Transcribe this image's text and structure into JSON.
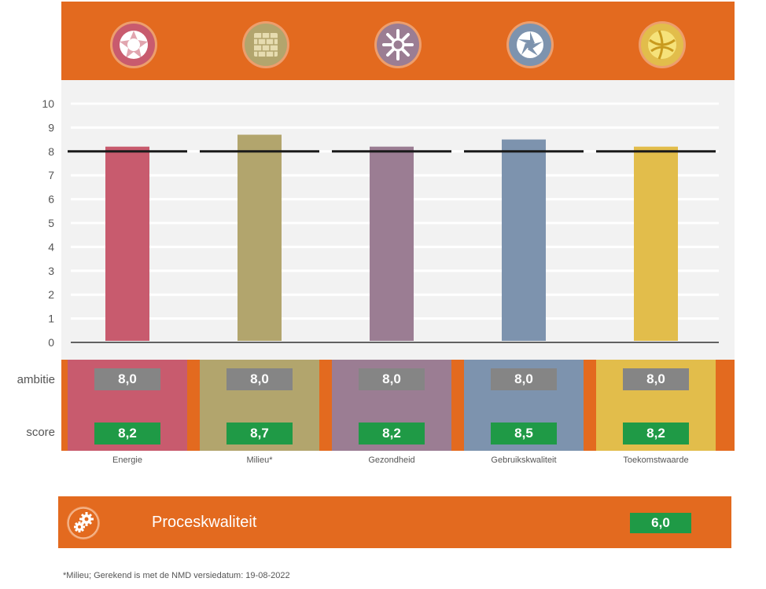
{
  "chart_data": {
    "type": "bar",
    "categories": [
      "Energie",
      "Milieu*",
      "Gezondheid",
      "Gebruikskwaliteit",
      "Toekomstwaarde"
    ],
    "values": [
      8.2,
      8.7,
      8.2,
      8.5,
      8.2
    ],
    "ambition": [
      8.0,
      8.0,
      8.0,
      8.0,
      8.0
    ],
    "ylim": [
      0,
      10
    ],
    "yticks": [
      "0",
      "1",
      "2",
      "3",
      "4",
      "5",
      "6",
      "7",
      "8",
      "9",
      "10"
    ],
    "grid": true,
    "reference_line": 8,
    "colors": [
      "#c85b6e",
      "#b2a56d",
      "#9b7d93",
      "#7d93ae",
      "#e2bd4b"
    ]
  },
  "table": {
    "ambition_label": "ambitie",
    "score_label": "score",
    "ambition_display": [
      "8,0",
      "8,0",
      "8,0",
      "8,0",
      "8,0"
    ],
    "score_display": [
      "8,2",
      "8,7",
      "8,2",
      "8,5",
      "8,2"
    ]
  },
  "icons": [
    "energie-icon",
    "milieu-icon",
    "gezondheid-icon",
    "gebruikskwaliteit-icon",
    "toekomstwaarde-icon"
  ],
  "process": {
    "label": "Proceskwaliteit",
    "score": "6,0",
    "icon": "gears-icon"
  },
  "footnote": "*Milieu; Gerekend is met de NMD versiedatum: 19-08-2022",
  "accent_color": "#e36a1f",
  "score_color": "#1f9a46",
  "ambition_color": "#858585"
}
